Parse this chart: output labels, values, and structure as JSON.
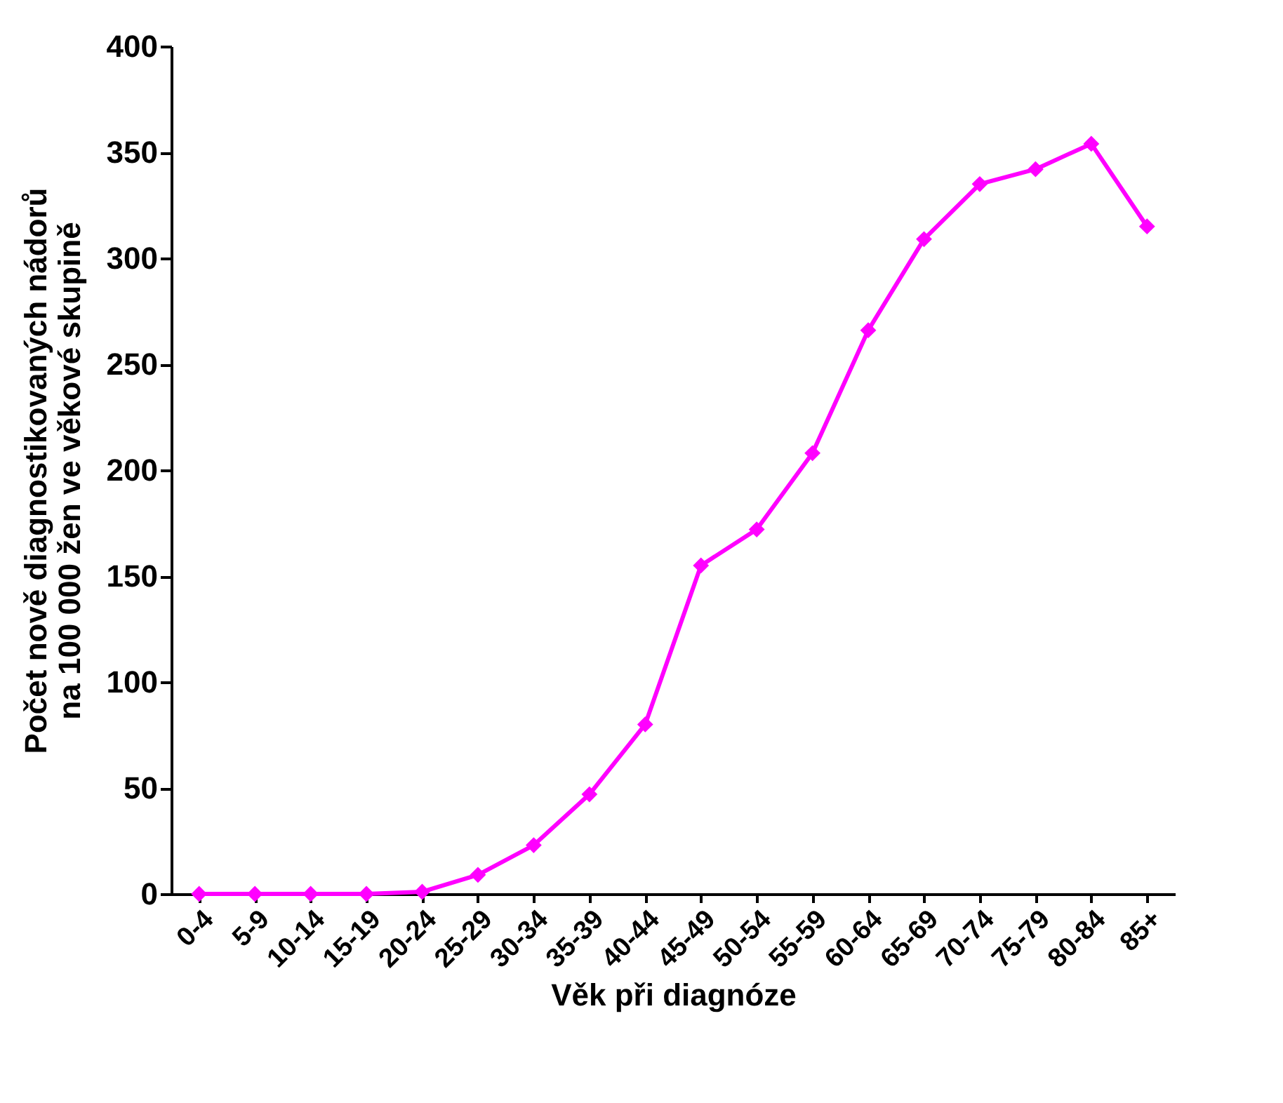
{
  "chart_data": {
    "type": "line",
    "xlabel": "Věk při diagnóze",
    "ylabel": "Počet nově diagnostikovaných nádorů\nna 100 000 žen ve věkové skupině",
    "categories": [
      "0-4",
      "5-9",
      "10-14",
      "15-19",
      "20-24",
      "25-29",
      "30-34",
      "35-39",
      "40-44",
      "45-49",
      "50-54",
      "55-59",
      "60-64",
      "65-69",
      "70-74",
      "75-79",
      "80-84",
      "85+"
    ],
    "series": [
      {
        "color": "#ff00ff",
        "values": [
          0,
          0,
          0,
          0,
          1,
          9,
          23,
          47,
          80,
          155,
          172,
          208,
          266,
          309,
          335,
          342,
          354,
          315
        ]
      }
    ],
    "ylim": [
      0,
      400
    ],
    "yticks": [
      0,
      50,
      100,
      150,
      200,
      250,
      300,
      350,
      400
    ],
    "grid": false,
    "legend": false,
    "marker": "diamond",
    "line_style": "solid"
  }
}
